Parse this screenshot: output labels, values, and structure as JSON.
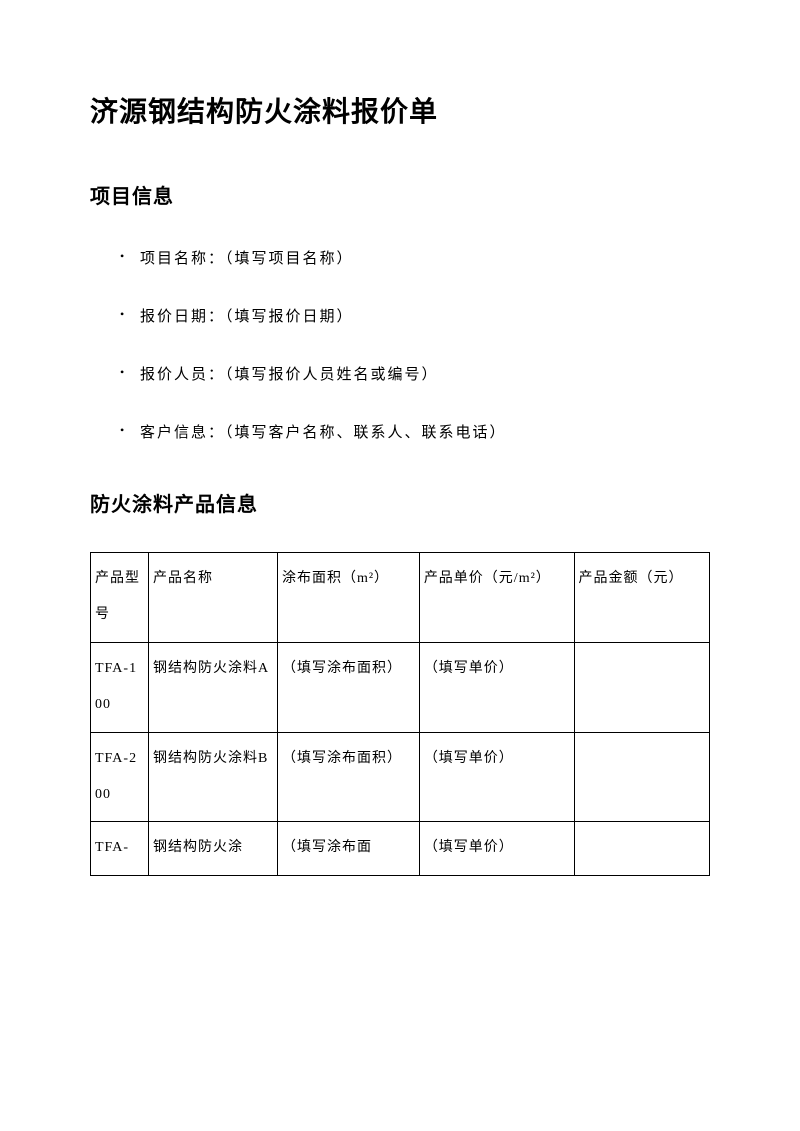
{
  "title": "济源钢结构防火涂料报价单",
  "section1": {
    "heading": "项目信息",
    "items": [
      "项目名称：（填写项目名称）",
      "报价日期：（填写报价日期）",
      "报价人员：（填写报价人员姓名或编号）",
      "客户信息：（填写客户名称、联系人、联系电话）"
    ]
  },
  "section2": {
    "heading": "防火涂料产品信息",
    "table": {
      "headers": [
        "产品型号",
        "产品名称",
        "涂布面积（m²）",
        "产品单价（元/m²）",
        "产品金额（元）"
      ],
      "rows": [
        [
          "TFA-100",
          "钢结构防火涂料A",
          "（填写涂布面积）",
          "（填写单价）",
          ""
        ],
        [
          "TFA-200",
          "钢结构防火涂料B",
          "（填写涂布面积）",
          "（填写单价）",
          ""
        ],
        [
          "TFA-",
          "钢结构防火涂",
          "（填写涂布面",
          "（填写单价）",
          ""
        ]
      ]
    }
  }
}
